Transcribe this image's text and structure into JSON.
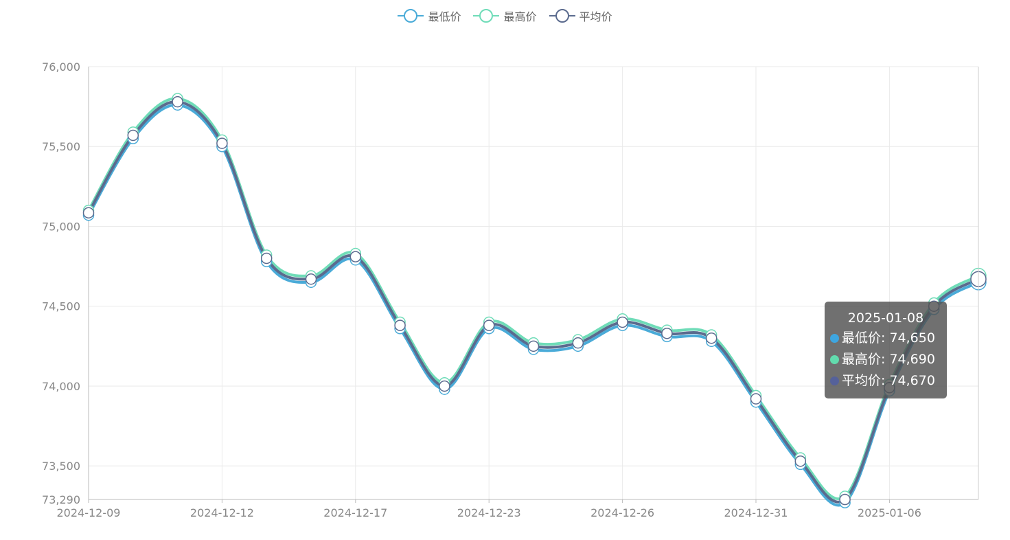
{
  "legend": {
    "items": [
      {
        "label": "最低价",
        "color": "#4aabd8"
      },
      {
        "label": "最高价",
        "color": "#6fdcb8"
      },
      {
        "label": "平均价",
        "color": "#5b6b8e"
      }
    ]
  },
  "tooltip": {
    "title": "2025-01-08",
    "rows": [
      {
        "label": "最低价: 74,650",
        "color": "#3ea6e0"
      },
      {
        "label": "最高价: 74,690",
        "color": "#62dcae"
      },
      {
        "label": "平均价: 74,670",
        "color": "#55619a"
      }
    ]
  },
  "chart_data": {
    "type": "line",
    "x": [
      "2024-12-09",
      "2024-12-10",
      "2024-12-11",
      "2024-12-12",
      "2024-12-13",
      "2024-12-16",
      "2024-12-17",
      "2024-12-18",
      "2024-12-20",
      "2024-12-23",
      "2024-12-24",
      "2024-12-25",
      "2024-12-26",
      "2024-12-27",
      "2024-12-30",
      "2024-12-31",
      "2025-01-02",
      "2025-01-03",
      "2025-01-06",
      "2025-01-07",
      "2025-01-08"
    ],
    "xticks": [
      "2024-12-09",
      "2024-12-12",
      "2024-12-17",
      "2024-12-23",
      "2024-12-26",
      "2024-12-31",
      "2025-01-06"
    ],
    "yticks": [
      "76,000",
      "75,500",
      "75,000",
      "74,500",
      "74,000",
      "73,500",
      "73,290"
    ],
    "ylim": [
      73290,
      76000
    ],
    "series": [
      {
        "name": "最低价",
        "color": "#4aabd8",
        "values": [
          75070,
          75550,
          75760,
          75500,
          74780,
          74650,
          74790,
          74360,
          73980,
          74360,
          74230,
          74250,
          74380,
          74310,
          74280,
          73900,
          73510,
          73270,
          73970,
          74480,
          74650
        ]
      },
      {
        "name": "最高价",
        "color": "#6fdcb8",
        "values": [
          75100,
          75590,
          75800,
          75540,
          74820,
          74690,
          74830,
          74400,
          74020,
          74400,
          74270,
          74290,
          74420,
          74350,
          74320,
          73940,
          73550,
          73310,
          74010,
          74520,
          74690
        ]
      },
      {
        "name": "平均价",
        "color": "#5b6b8e",
        "values": [
          75085,
          75570,
          75780,
          75520,
          74800,
          74670,
          74810,
          74380,
          74000,
          74380,
          74250,
          74270,
          74400,
          74330,
          74300,
          73920,
          73530,
          73290,
          73990,
          74500,
          74670
        ]
      }
    ]
  }
}
